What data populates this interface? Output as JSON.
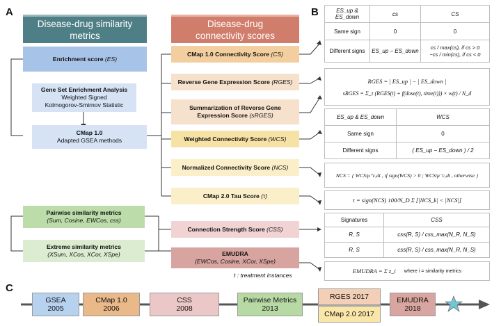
{
  "panels": {
    "a": "A",
    "b": "B",
    "c": "C"
  },
  "headers": {
    "similarity": "Disease-drug similarity metrics",
    "connectivity": "Disease-drug connectivity scores"
  },
  "left": {
    "enrichment": {
      "title": "Enrichment score",
      "abbr": "(ES)"
    },
    "gsea": {
      "title": "Gene Set Enrichment Analysis",
      "line2": "Weighted Signed",
      "line3": "Kolmogorov-Smirnov Statistic"
    },
    "cmap1": {
      "title": "CMap 1.0",
      "line2": "Adapted GSEA methods"
    },
    "pairwise": {
      "title": "Pairwise similarity metrics",
      "line2": "(Sum, Cosine, EWCos, css)"
    },
    "extreme": {
      "title": "Extreme similarity metrics",
      "line2": "(XSum, XCos, XCor, XSpe)"
    }
  },
  "middle": {
    "cs": {
      "title": "CMap 1.0 Connectivity Score",
      "abbr": "(CS)"
    },
    "rges": {
      "title": "Reverse Gene Expression Score",
      "abbr": "(RGES)"
    },
    "srges": {
      "title": "Summarization of Reverse Gene",
      "line2": "Expression Score",
      "abbr": "(sRGES)"
    },
    "wcs": {
      "title": "Weighted Connectivity Score",
      "abbr": "(WCS)"
    },
    "ncs": {
      "title": "Normalized Connectivity Score",
      "abbr": "(NCS)"
    },
    "tau": {
      "title": "CMap 2.0 Tau Score",
      "abbr": "(τ)"
    },
    "css": {
      "title": "Connection Strength Score",
      "abbr": "(CSS)"
    },
    "emudra": {
      "title": "EMUDRA",
      "line2": "(EWCos, Cosine, XCor, XSpe)"
    },
    "note": "t : treatment instances"
  },
  "table_cs": {
    "h1": "ES_up & ES_down",
    "h2": "cs",
    "h3": "CS",
    "r1": [
      "Same sign",
      "0",
      "0"
    ],
    "r2": [
      "Different signs",
      "ES_up − ES_down",
      "cs / max(cs), if cs > 0",
      "−cs / min(cs), if cs < 0"
    ]
  },
  "formulas": {
    "rges": "RGES = | ES_up | − | ES_down |",
    "srges": "sRGES = Σ_τ (RGES(t) + f(dose(t), time(t))) × w(t) / N_d",
    "ncs": "NCS = { WCS/μ⁺c,dt , if sign(WCS) > 0 ; WCS/μ⁻c,dt , otherwise }",
    "tau": "τ = sign(NCS) 100/N_D Σ [|NCS_k| < |NCS|]",
    "emudra": "EMUDRA = Σ z_i",
    "emudra_note": "where i = similarity metrics"
  },
  "table_wcs": {
    "h1": "ES_up & ES_down",
    "h2": "WCS",
    "r1": [
      "Same sign",
      "0"
    ],
    "r2": [
      "Different signs",
      "( ES_up − ES_down ) / 2"
    ]
  },
  "table_css": {
    "h1": "Signatures",
    "h2": "CSS",
    "r1": [
      "R, S",
      "css(R, S) / css_max(N_R, N_S)"
    ],
    "r2": [
      "R, S",
      "css(R, S) / css_max(N_R, N_S)"
    ]
  },
  "timeline": [
    {
      "name": "GSEA",
      "year": "2005",
      "color": "#b6d2ef"
    },
    {
      "name": "CMap 1.0",
      "year": "2006",
      "color": "#eab98a"
    },
    {
      "name": "CSS",
      "year": "2008",
      "color": "#ecc7c7"
    },
    {
      "name": "Pairwise Metrics",
      "year": "2013",
      "color": "#b7d9a4"
    },
    {
      "name": "RGES 2017",
      "year": "",
      "color": "#f2cfb6"
    },
    {
      "name": "CMap 2.0 2017",
      "year": "",
      "color": "#fbe6a9"
    },
    {
      "name": "EMUDRA",
      "year": "2018",
      "color": "#d9a5a0"
    }
  ],
  "colors": {
    "teal_header": "#4f7f86",
    "red_header": "#d17d6b",
    "blue": "#a8c3e8",
    "light_blue": "#d5e3f5",
    "orange": "#f3cf9f",
    "peach": "#f5e1cc",
    "yellow": "#f7e2a6",
    "light_yellow": "#fbefc9",
    "pink": "#f1d3d3",
    "green": "#bcdcaa",
    "light_green": "#dcecd0",
    "emudra_red": "#d7a49f",
    "star": "#73c6d4"
  }
}
